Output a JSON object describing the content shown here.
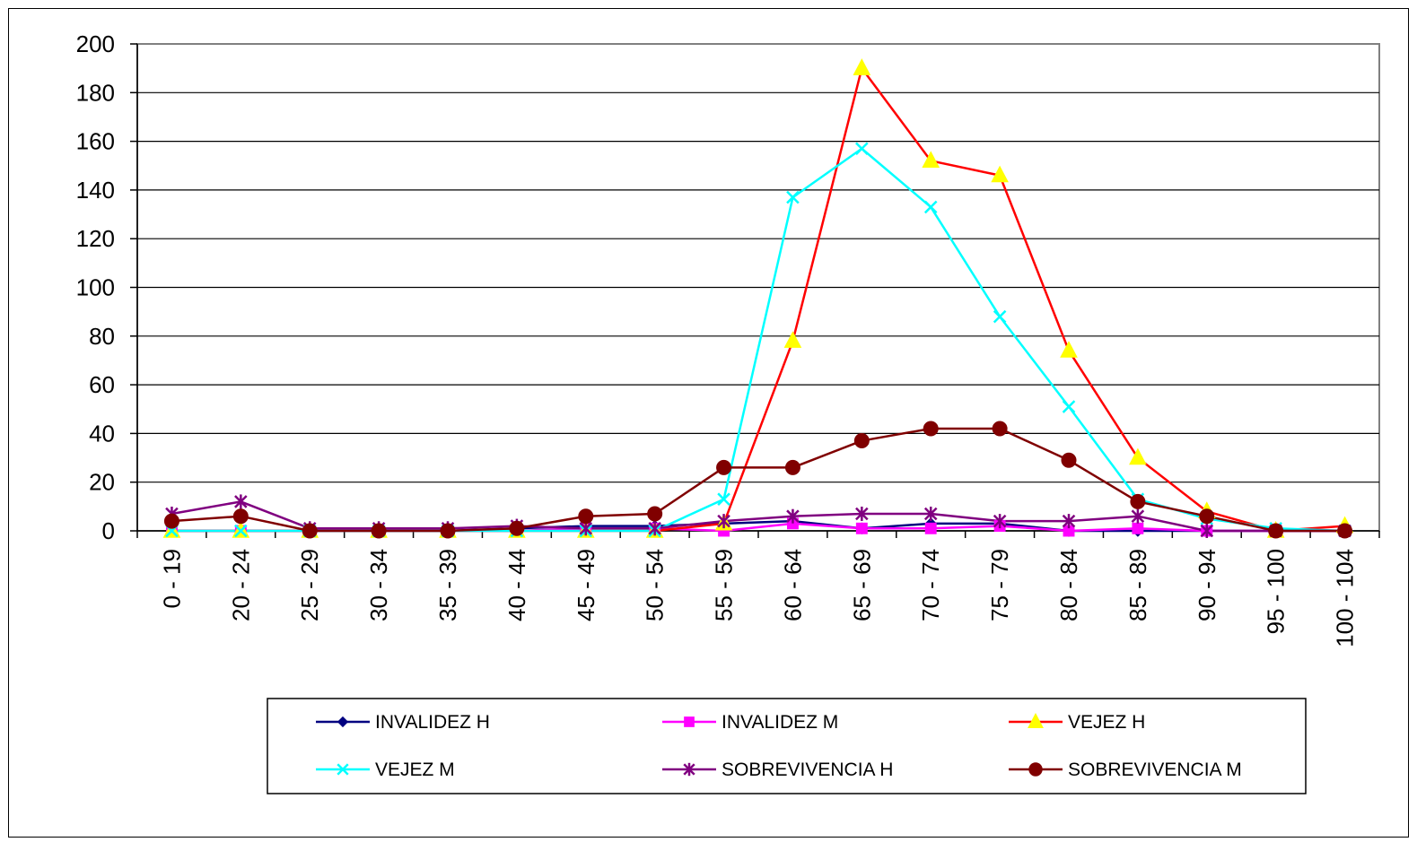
{
  "chart_data": {
    "type": "line",
    "title": "",
    "xlabel": "",
    "ylabel": "",
    "categories": [
      "0 - 19",
      "20 - 24",
      "25 - 29",
      "30 - 34",
      "35 - 39",
      "40 - 44",
      "45 - 49",
      "50 - 54",
      "55 - 59",
      "60 - 64",
      "65 - 69",
      "70 - 74",
      "75 - 79",
      "80 - 84",
      "85 - 89",
      "90 - 94",
      "95 - 100",
      "100 - 104"
    ],
    "ylim": [
      0,
      200
    ],
    "yticks": [
      0,
      20,
      40,
      60,
      80,
      100,
      120,
      140,
      160,
      180,
      200
    ],
    "grid": "horizontal",
    "legend_position": "bottom",
    "series": [
      {
        "name": "INVALIDEZ H",
        "color": "#000080",
        "marker": "diamond",
        "values": [
          0,
          0,
          0,
          0,
          0,
          1,
          2,
          2,
          3,
          4,
          1,
          3,
          3,
          0,
          0,
          0,
          0,
          0
        ]
      },
      {
        "name": "INVALIDEZ M",
        "color": "#FF00FF",
        "marker": "square",
        "values": [
          0,
          0,
          0,
          0,
          0,
          0,
          1,
          1,
          0,
          3,
          1,
          1,
          2,
          0,
          1,
          0,
          0,
          0
        ]
      },
      {
        "name": "VEJEZ H",
        "color": "#FF0000",
        "marker": "triangle",
        "marker_fill": "#FFFF00",
        "values": [
          0,
          0,
          0,
          0,
          0,
          0,
          0,
          0,
          3,
          78,
          190,
          152,
          146,
          74,
          30,
          8,
          0,
          2
        ]
      },
      {
        "name": "VEJEZ M",
        "color": "#00FFFF",
        "marker": "x",
        "values": [
          0,
          0,
          0,
          0,
          0,
          0,
          0,
          0,
          13,
          137,
          157,
          133,
          88,
          51,
          13,
          5,
          1,
          0
        ]
      },
      {
        "name": "SOBREVIVENCIA H",
        "color": "#800080",
        "marker": "star",
        "values": [
          7,
          12,
          1,
          1,
          1,
          2,
          1,
          1,
          4,
          6,
          7,
          7,
          4,
          4,
          6,
          0,
          0,
          0
        ]
      },
      {
        "name": "SOBREVIVENCIA M",
        "color": "#800000",
        "marker": "circle",
        "values": [
          4,
          6,
          0,
          0,
          0,
          1,
          6,
          7,
          26,
          26,
          37,
          42,
          42,
          29,
          12,
          6,
          0,
          0
        ]
      }
    ]
  }
}
